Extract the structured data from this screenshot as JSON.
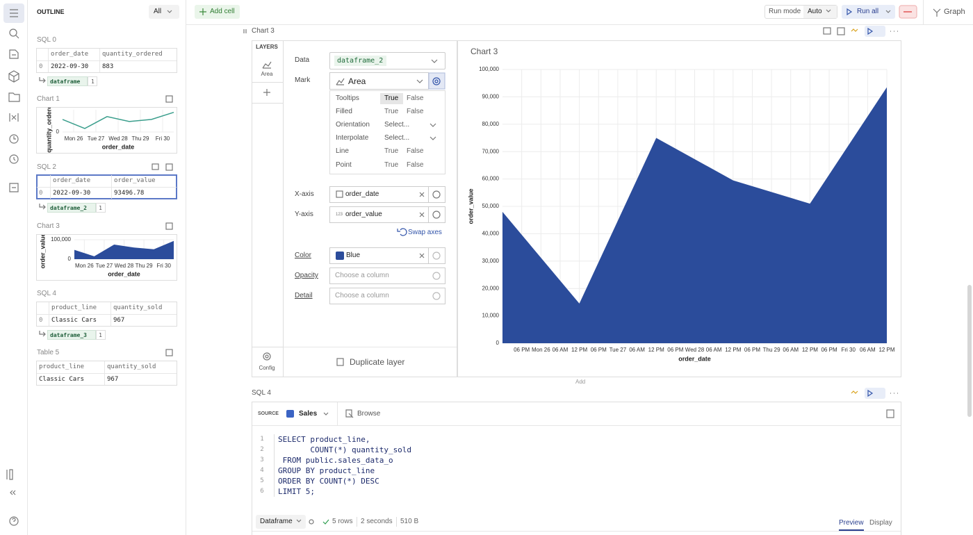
{
  "toolbar": {
    "add_cell": "Add cell",
    "run_mode_label": "Run mode",
    "run_mode": "Auto",
    "run_all": "Run all",
    "graph": "Graph"
  },
  "outline": {
    "title": "OUTLINE",
    "filter": "All",
    "sql_0": {
      "title": "SQL 0",
      "columns": [
        "order_date",
        "quantity_ordered"
      ],
      "rows": [
        [
          "0",
          "2022-09-30",
          "883"
        ]
      ],
      "result": "dataframe",
      "result_count": "1"
    },
    "chart_1": {
      "type": "line",
      "title": "Chart 1",
      "x_label": "order_date",
      "y_label": "quantity_ordered",
      "x": [
        -12,
        12,
        36,
        60,
        84,
        108
      ],
      "values": [
        567,
        158,
        693,
        473,
        567,
        883
      ],
      "color": "#3a9e8c",
      "xlim": [
        -12,
        108
      ],
      "ylim": [
        0,
        1000
      ],
      "yticks": [
        0
      ],
      "grid": true,
      "xticks": [
        {
          "value": 0,
          "label": "Mon 26"
        },
        {
          "value": 24,
          "label": "Tue 27"
        },
        {
          "value": 48,
          "label": "Wed 28"
        },
        {
          "value": 72,
          "label": "Thu 29"
        },
        {
          "value": 96,
          "label": "Fri 30"
        }
      ]
    },
    "sql_2": {
      "title": "SQL 2",
      "columns": [
        "order_date",
        "order_value"
      ],
      "rows": [
        [
          "0",
          "2022-09-30",
          "93496.78"
        ]
      ],
      "result": "dataframe_2",
      "result_count": "1"
    },
    "chart_3": {
      "type": "area",
      "title": "Chart 3",
      "x_label": "order_date",
      "y_label": "order_value",
      "x": [
        -12,
        12,
        36,
        60,
        84,
        108
      ],
      "values": [
        48000,
        14500,
        75000,
        59500,
        51000,
        93500
      ],
      "color": "#2b4c9b",
      "xlim": [
        -12,
        108
      ],
      "ylim": [
        0,
        100000
      ],
      "yticks": [
        {
          "value": 100000,
          "label": "100,000"
        },
        0
      ],
      "grid": true,
      "xticks": [
        {
          "value": 0,
          "label": "Mon 26"
        },
        {
          "value": 24,
          "label": "Tue 27"
        },
        {
          "value": 48,
          "label": "Wed 28"
        },
        {
          "value": 72,
          "label": "Thu 29"
        },
        {
          "value": 96,
          "label": "Fri 30"
        }
      ]
    },
    "sql_4": {
      "title": "SQL 4",
      "columns": [
        "product_line",
        "quantity_sold"
      ],
      "rows": [
        [
          "0",
          "Classic Cars",
          "967"
        ]
      ],
      "result": "dataframe_3",
      "result_count": "1"
    },
    "table_5": {
      "title": "Table 5",
      "columns": [
        "product_line",
        "quantity_sold"
      ],
      "rows": [
        [
          "Classic Cars",
          "967"
        ]
      ]
    }
  },
  "chart_cell": {
    "title": "Chart 3",
    "layers_title": "LAYERS",
    "layer": "Area",
    "config": "Config",
    "form": {
      "data_label": "Data",
      "data_value": "dataframe_2",
      "mark_label": "Mark",
      "mark_value": "Area",
      "options": [
        {
          "label": "Tooltips",
          "choices": [
            "True",
            "False"
          ],
          "selected": 0
        },
        {
          "label": "Filled",
          "choices": [
            "True",
            "False"
          ]
        },
        {
          "label": "Orientation",
          "select": "Select..."
        },
        {
          "label": "Interpolate",
          "select": "Select..."
        },
        {
          "label": "Line",
          "choices": [
            "True",
            "False"
          ]
        },
        {
          "label": "Point",
          "choices": [
            "True",
            "False"
          ]
        }
      ],
      "x_label": "X-axis",
      "x_value": "order_date",
      "y_label": "Y-axis",
      "y_type": "123",
      "y_value": "order_value",
      "swap": "Swap axes",
      "color_label": "Color",
      "color_value": "Blue",
      "opacity_label": "Opacity",
      "opacity_placeholder": "Choose a column",
      "detail_label": "Detail",
      "detail_placeholder": "Choose a column"
    },
    "duplicate": "Duplicate layer"
  },
  "chart_data": {
    "type": "area",
    "title": "Chart 3",
    "x_label": "order_date",
    "y_label": "order_value",
    "x": [
      -12,
      12,
      36,
      60,
      84,
      108
    ],
    "values": [
      48000,
      14500,
      75000,
      59500,
      51000,
      93500
    ],
    "color": "#2b4c9b",
    "xlim": [
      -12,
      108
    ],
    "ylim": [
      0,
      100000
    ],
    "grid": true,
    "yticks": [
      0,
      {
        "value": 10000,
        "label": "10,000"
      },
      {
        "value": 20000,
        "label": "20,000"
      },
      {
        "value": 30000,
        "label": "30,000"
      },
      {
        "value": 40000,
        "label": "40,000"
      },
      {
        "value": 50000,
        "label": "50,000"
      },
      {
        "value": 60000,
        "label": "60,000"
      },
      {
        "value": 70000,
        "label": "70,000"
      },
      {
        "value": 80000,
        "label": "80,000"
      },
      {
        "value": 90000,
        "label": "90,000"
      },
      {
        "value": 100000,
        "label": "100,000"
      }
    ],
    "xticks": [
      {
        "value": -6,
        "label": "06 PM"
      },
      {
        "value": 0,
        "label": "Mon 26"
      },
      {
        "value": 6,
        "label": "06 AM"
      },
      {
        "value": 12,
        "label": "12 PM"
      },
      {
        "value": 18,
        "label": "06 PM"
      },
      {
        "value": 24,
        "label": "Tue 27"
      },
      {
        "value": 30,
        "label": "06 AM"
      },
      {
        "value": 36,
        "label": "12 PM"
      },
      {
        "value": 42,
        "label": "06 PM"
      },
      {
        "value": 48,
        "label": "Wed 28"
      },
      {
        "value": 54,
        "label": "06 AM"
      },
      {
        "value": 60,
        "label": "12 PM"
      },
      {
        "value": 66,
        "label": "06 PM"
      },
      {
        "value": 72,
        "label": "Thu 29"
      },
      {
        "value": 78,
        "label": "06 AM"
      },
      {
        "value": 84,
        "label": "12 PM"
      },
      {
        "value": 90,
        "label": "06 PM"
      },
      {
        "value": 96,
        "label": "Fri 30"
      },
      {
        "value": 102,
        "label": "06 AM"
      },
      {
        "value": 108,
        "label": "12 PM"
      }
    ]
  },
  "add_between": "Add",
  "sql_cell": {
    "title": "SQL 4",
    "source_label": "SOURCE",
    "source": "Sales",
    "browse": "Browse",
    "line_numbers": [
      "1",
      "2",
      "3",
      "4",
      "5",
      "6"
    ],
    "code": [
      "SELECT product_line,",
      "       COUNT(*) quantity_sold",
      " FROM public.sales_data_o",
      "GROUP BY product_line",
      "ORDER BY COUNT(*) DESC",
      "LIMIT 5;"
    ],
    "result_type": "Dataframe",
    "rows": "5 rows",
    "duration": "2 seconds",
    "size": "510 B",
    "tabs": [
      "Preview",
      "Display"
    ]
  }
}
